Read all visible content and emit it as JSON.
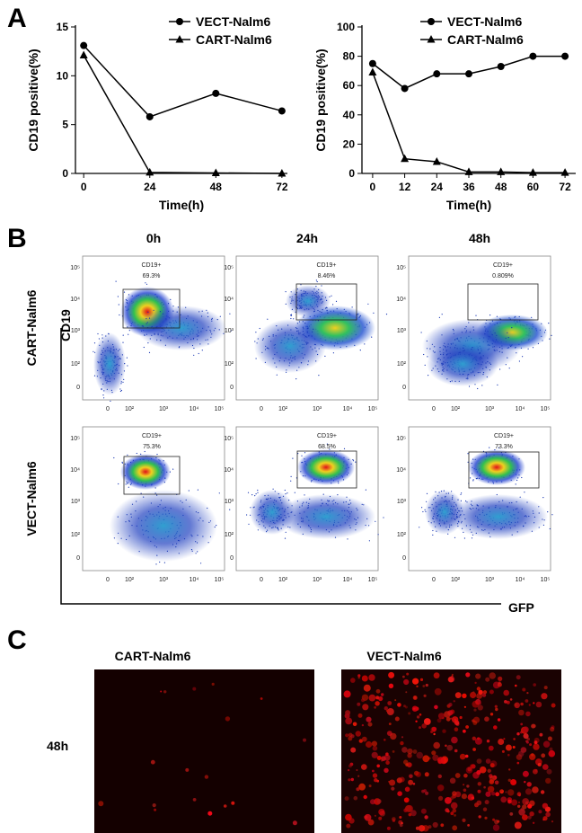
{
  "panel_labels": [
    "A",
    "B",
    "C"
  ],
  "chart_data": [
    {
      "type": "line",
      "x": [
        0,
        24,
        48,
        72
      ],
      "xlim": [
        -3,
        74
      ],
      "xticks": [
        0,
        24,
        48,
        72
      ],
      "ylim": [
        0,
        15
      ],
      "yticks": [
        0,
        5,
        10,
        15
      ],
      "xlabel": "Time(h)",
      "ylabel": "CD19 positive(%)",
      "legend": "upper right",
      "series": [
        {
          "name": "VECT-Nalm6",
          "color": "#000000",
          "marker": "circle",
          "values": [
            13.1,
            5.8,
            8.2,
            6.4
          ]
        },
        {
          "name": "CART-Nalm6",
          "color": "#000000",
          "marker": "triangle",
          "values": [
            12.1,
            0.1,
            0.05,
            0
          ]
        }
      ]
    },
    {
      "type": "line",
      "x": [
        0,
        12,
        24,
        36,
        48,
        60,
        72
      ],
      "xlim": [
        -4,
        76
      ],
      "xticks": [
        0,
        12,
        24,
        36,
        48,
        60,
        72
      ],
      "ylim": [
        0,
        100
      ],
      "yticks": [
        0,
        20,
        40,
        60,
        80,
        100
      ],
      "xlabel": "Time(h)",
      "ylabel": "CD19 positive(%)",
      "legend": "upper right",
      "series": [
        {
          "name": "VECT-Nalm6",
          "color": "#000000",
          "marker": "circle",
          "values": [
            75,
            58,
            68,
            68,
            73,
            80,
            80
          ]
        },
        {
          "name": "CART-Nalm6",
          "color": "#000000",
          "marker": "triangle",
          "values": [
            69,
            10,
            8,
            1,
            1,
            0.5,
            0.5
          ]
        }
      ]
    }
  ],
  "flow": {
    "column_headers": [
      "0h",
      "24h",
      "48h"
    ],
    "row_labels": [
      "CART-Nalm6",
      "VECT-Nalm6"
    ],
    "gate_label": "CD19+",
    "gate_percents": [
      [
        "69.3%",
        "8.46%",
        "0.809%"
      ],
      [
        "75.3%",
        "68.5%",
        "73.3%"
      ]
    ],
    "y_axis_title": "CD19",
    "x_axis_title": "GFP",
    "y_tick_labels": [
      "10⁵",
      "10⁴",
      "10³",
      "10²",
      "0"
    ],
    "x_tick_labels": [
      "0",
      "10²",
      "10³",
      "10⁴",
      "10⁵"
    ]
  },
  "images": {
    "headers": [
      "CART-Nalm6",
      "VECT-Nalm6"
    ],
    "row_label": "48h"
  }
}
